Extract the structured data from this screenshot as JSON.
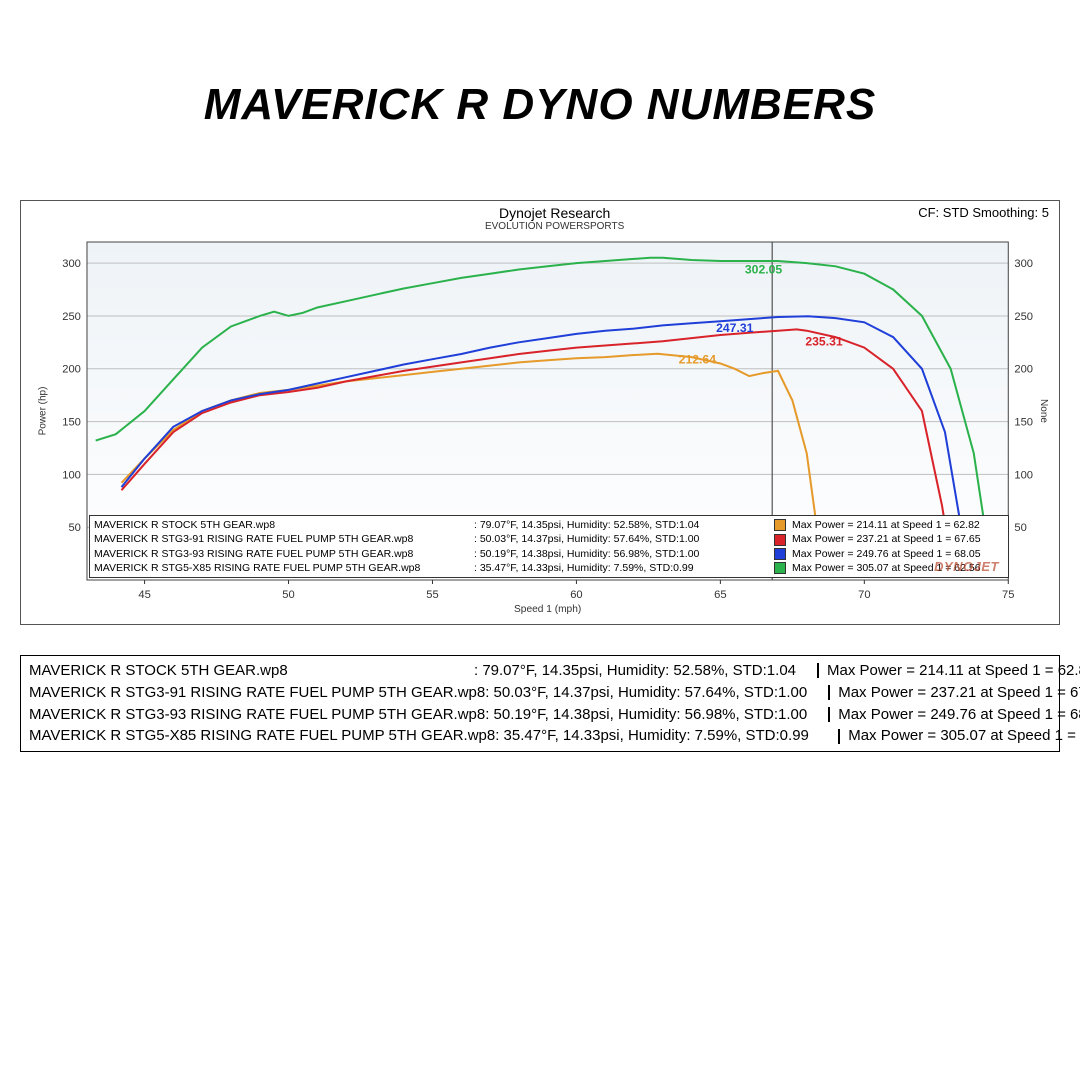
{
  "title": "MAVERICK R DYNO NUMBERS",
  "panel": {
    "header_center_line1": "Dynojet Research",
    "header_center_line2": "EVOLUTION POWERSPORTS",
    "header_right": "CF: STD Smoothing: 5",
    "watermark": "DYNOJET",
    "x_axis_label": "Speed 1 (mph)",
    "y_left_label": "Power (hp)",
    "y_right_label": "None",
    "xlim": [
      43,
      75
    ],
    "ylim": [
      0,
      320
    ],
    "x_ticks": [
      45,
      50,
      55,
      60,
      65,
      70,
      75
    ],
    "y_ticks": [
      50,
      100,
      150,
      200,
      250,
      300
    ],
    "grid_color": "#bfbfbf",
    "border_color": "#444444",
    "vline_x": 66.8,
    "vline_color": "#555555"
  },
  "series": [
    {
      "name": "stock",
      "color": "#e59a2a",
      "label_value": "212.64",
      "label_xy": [
        64.2,
        205
      ],
      "points": [
        [
          44.2,
          92
        ],
        [
          45,
          115
        ],
        [
          46,
          142
        ],
        [
          47,
          160
        ],
        [
          48,
          170
        ],
        [
          49,
          177
        ],
        [
          50,
          180
        ],
        [
          51,
          184
        ],
        [
          52,
          188
        ],
        [
          53,
          191
        ],
        [
          54,
          194
        ],
        [
          55,
          197
        ],
        [
          56,
          200
        ],
        [
          57,
          203
        ],
        [
          58,
          206
        ],
        [
          59,
          208
        ],
        [
          60,
          210
        ],
        [
          61,
          211
        ],
        [
          62,
          213
        ],
        [
          62.82,
          214.11
        ],
        [
          64,
          211
        ],
        [
          65,
          205
        ],
        [
          65.5,
          200
        ],
        [
          66,
          193
        ],
        [
          66.5,
          196
        ],
        [
          67,
          198
        ],
        [
          67.5,
          170
        ],
        [
          68,
          120
        ],
        [
          68.3,
          60
        ],
        [
          68.5,
          20
        ]
      ]
    },
    {
      "name": "stg3-91",
      "color": "#d8232a",
      "label_value": "235.31",
      "label_xy": [
        68.6,
        222
      ],
      "points": [
        [
          44.2,
          85
        ],
        [
          45,
          110
        ],
        [
          46,
          140
        ],
        [
          47,
          158
        ],
        [
          48,
          168
        ],
        [
          49,
          175
        ],
        [
          50,
          178
        ],
        [
          51,
          182
        ],
        [
          52,
          188
        ],
        [
          53,
          193
        ],
        [
          54,
          198
        ],
        [
          55,
          202
        ],
        [
          56,
          206
        ],
        [
          57,
          210
        ],
        [
          58,
          214
        ],
        [
          59,
          217
        ],
        [
          60,
          220
        ],
        [
          61,
          222
        ],
        [
          62,
          224
        ],
        [
          63,
          226
        ],
        [
          64,
          229
        ],
        [
          65,
          232
        ],
        [
          66,
          234
        ],
        [
          67,
          236
        ],
        [
          67.65,
          237.21
        ],
        [
          68,
          236
        ],
        [
          69,
          230
        ],
        [
          70,
          220
        ],
        [
          71,
          200
        ],
        [
          72,
          160
        ],
        [
          72.7,
          70
        ],
        [
          73,
          20
        ]
      ]
    },
    {
      "name": "stg3-93",
      "color": "#1f3fd8",
      "label_value": "247.31",
      "label_xy": [
        65.5,
        235
      ],
      "points": [
        [
          44.2,
          88
        ],
        [
          45,
          115
        ],
        [
          46,
          145
        ],
        [
          47,
          160
        ],
        [
          48,
          170
        ],
        [
          49,
          176
        ],
        [
          50,
          180
        ],
        [
          51,
          186
        ],
        [
          52,
          192
        ],
        [
          53,
          198
        ],
        [
          54,
          204
        ],
        [
          55,
          209
        ],
        [
          56,
          214
        ],
        [
          57,
          220
        ],
        [
          58,
          225
        ],
        [
          59,
          229
        ],
        [
          60,
          233
        ],
        [
          61,
          236
        ],
        [
          62,
          238
        ],
        [
          63,
          241
        ],
        [
          64,
          243
        ],
        [
          65,
          245
        ],
        [
          66,
          247
        ],
        [
          67,
          249
        ],
        [
          68.05,
          249.76
        ],
        [
          69,
          248
        ],
        [
          70,
          244
        ],
        [
          71,
          230
        ],
        [
          72,
          200
        ],
        [
          72.8,
          140
        ],
        [
          73.3,
          60
        ],
        [
          73.6,
          15
        ]
      ]
    },
    {
      "name": "stg5-x85",
      "color": "#2bb24c",
      "label_value": "302.05",
      "label_xy": [
        66.5,
        290
      ],
      "points": [
        [
          43.3,
          132
        ],
        [
          44,
          138
        ],
        [
          45,
          160
        ],
        [
          46,
          190
        ],
        [
          47,
          220
        ],
        [
          48,
          240
        ],
        [
          49,
          250
        ],
        [
          49.5,
          254
        ],
        [
          50,
          250
        ],
        [
          50.5,
          253
        ],
        [
          51,
          258
        ],
        [
          52,
          264
        ],
        [
          53,
          270
        ],
        [
          54,
          276
        ],
        [
          55,
          281
        ],
        [
          56,
          286
        ],
        [
          57,
          290
        ],
        [
          58,
          294
        ],
        [
          59,
          297
        ],
        [
          60,
          300
        ],
        [
          61,
          302
        ],
        [
          62,
          304
        ],
        [
          62.56,
          305.07
        ],
        [
          63,
          305
        ],
        [
          64,
          303
        ],
        [
          65,
          302
        ],
        [
          66,
          302
        ],
        [
          67,
          302
        ],
        [
          68,
          300
        ],
        [
          69,
          297
        ],
        [
          70,
          290
        ],
        [
          71,
          275
        ],
        [
          72,
          250
        ],
        [
          73,
          200
        ],
        [
          73.8,
          120
        ],
        [
          74.3,
          30
        ]
      ]
    }
  ],
  "legend_rows": [
    {
      "file": "MAVERICK R STOCK 5TH GEAR.wp8",
      "conds": ": 79.07°F, 14.35psi, Humidity: 52.58%, STD:1.04",
      "color": "#e59a2a",
      "max": "Max Power = 214.11 at Speed 1 = 62.82"
    },
    {
      "file": "MAVERICK R STG3-91 RISING RATE FUEL PUMP 5TH GEAR.wp8",
      "conds": ": 50.03°F, 14.37psi, Humidity: 57.64%, STD:1.00",
      "color": "#d8232a",
      "max": "Max Power = 237.21 at Speed 1 = 67.65"
    },
    {
      "file": "MAVERICK R STG3-93 RISING RATE FUEL PUMP 5TH GEAR.wp8",
      "conds": ": 50.19°F, 14.38psi, Humidity: 56.98%, STD:1.00",
      "color": "#1f3fd8",
      "max": "Max Power = 249.76 at Speed 1 = 68.05"
    },
    {
      "file": "MAVERICK R STG5-X85 RISING RATE FUEL PUMP 5TH GEAR.wp8",
      "conds": ": 35.47°F, 14.33psi, Humidity: 7.59%, STD:0.99",
      "color": "#2bb24c",
      "max": "Max Power = 305.07 at Speed 1 = 62.56"
    }
  ]
}
